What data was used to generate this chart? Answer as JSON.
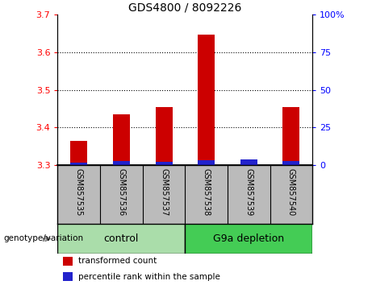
{
  "title": "GDS4800 / 8092226",
  "samples": [
    "GSM857535",
    "GSM857536",
    "GSM857537",
    "GSM857538",
    "GSM857539",
    "GSM857540"
  ],
  "red_values": [
    3.365,
    3.435,
    3.455,
    3.645,
    3.315,
    3.455
  ],
  "blue_values": [
    2.0,
    3.0,
    2.5,
    3.5,
    4.0,
    3.0
  ],
  "ylim_left": [
    3.3,
    3.7
  ],
  "ylim_right": [
    0,
    100
  ],
  "yticks_left": [
    3.3,
    3.4,
    3.5,
    3.6,
    3.7
  ],
  "yticks_right": [
    0,
    25,
    50,
    75,
    100
  ],
  "grid_values": [
    3.4,
    3.5,
    3.6
  ],
  "bar_width": 0.4,
  "red_color": "#cc0000",
  "blue_color": "#2222cc",
  "xlabel_area_color": "#bbbbbb",
  "group1_label": "control",
  "group2_label": "G9a depletion",
  "group1_color": "#aaddaa",
  "group2_color": "#44cc55",
  "legend_red": "transformed count",
  "legend_blue": "percentile rank within the sample",
  "genotype_label": "genotype/variation",
  "title_fontsize": 10,
  "tick_fontsize": 8,
  "sample_fontsize": 7,
  "legend_fontsize": 7.5,
  "group_fontsize": 9
}
